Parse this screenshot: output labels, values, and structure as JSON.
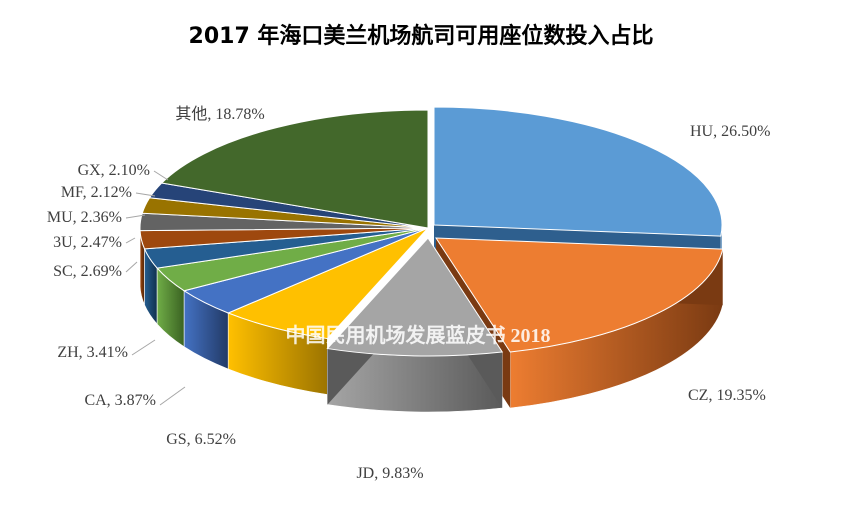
{
  "chart_data": {
    "type": "pie",
    "style": "3d-exploded",
    "title": "2017 年海口美兰机场航司可用座位数投入占比",
    "watermark": "中国民用机场发展蓝皮书 2018",
    "slices": [
      {
        "label": "HU",
        "display": "HU, 26.50%",
        "value": 26.5,
        "color": "#5b9bd5",
        "dark": "#2e5f8e"
      },
      {
        "label": "CZ",
        "display": "CZ, 19.35%",
        "value": 19.35,
        "color": "#ed7d31",
        "dark": "#7a3a12"
      },
      {
        "label": "JD",
        "display": "JD, 9.83%",
        "value": 9.83,
        "color": "#a5a5a5",
        "dark": "#5a5a5a"
      },
      {
        "label": "GS",
        "display": "GS, 6.52%",
        "value": 6.52,
        "color": "#ffc000",
        "dark": "#9c7400"
      },
      {
        "label": "CA",
        "display": "CA, 3.87%",
        "value": 3.87,
        "color": "#4472c4",
        "dark": "#223a66"
      },
      {
        "label": "ZH",
        "display": "ZH, 3.41%",
        "value": 3.41,
        "color": "#70ad47",
        "dark": "#3a6222"
      },
      {
        "label": "SC",
        "display": "SC, 2.69%",
        "value": 2.69,
        "color": "#255e91",
        "dark": "#10304d"
      },
      {
        "label": "3U",
        "display": "3U, 2.47%",
        "value": 2.47,
        "color": "#9e480e",
        "dark": "#4f2307"
      },
      {
        "label": "MU",
        "display": "MU, 2.36%",
        "value": 2.36,
        "color": "#636363",
        "dark": "#333333"
      },
      {
        "label": "MF",
        "display": "MF, 2.12%",
        "value": 2.12,
        "color": "#997300",
        "dark": "#4d3a00"
      },
      {
        "label": "GX",
        "display": "GX, 2.10%",
        "value": 2.1,
        "color": "#264478",
        "dark": "#13223c"
      },
      {
        "label": "其他",
        "display": "其他, 18.78%",
        "value": 18.78,
        "color": "#43682b",
        "dark": "#223516"
      }
    ]
  }
}
